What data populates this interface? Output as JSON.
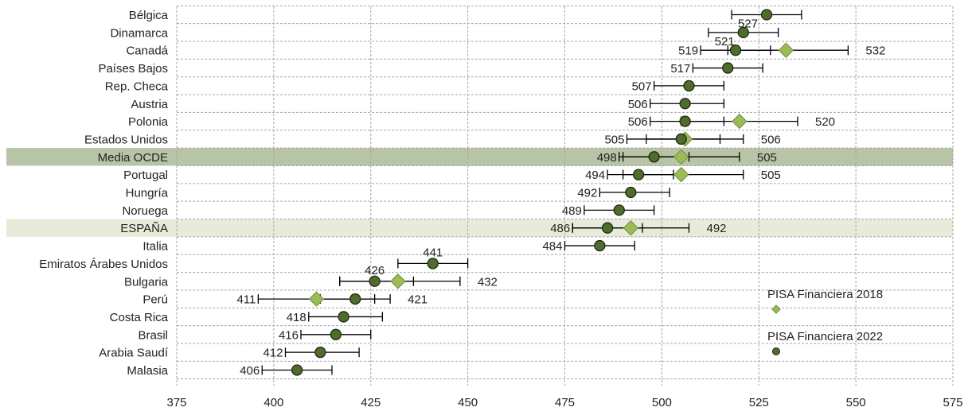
{
  "chart_data": {
    "type": "scatter",
    "title": "",
    "xlabel": "",
    "ylabel": "",
    "xlim": [
      375,
      575
    ],
    "xticks": [
      375,
      400,
      425,
      450,
      475,
      500,
      525,
      550,
      575
    ],
    "grid": true,
    "legend_position": "right",
    "colors": {
      "pisa_2022": "#4f6b2d",
      "pisa_2018": "#9bbb59",
      "highlight_oecd": "#b7c4a5",
      "highlight_spain": "#e6ecd9",
      "grid": "#a6a6a6"
    },
    "series": [
      {
        "name": "PISA Financiera 2018",
        "marker": "diamond",
        "key": "pisa_2018"
      },
      {
        "name": "PISA Financiera 2022",
        "marker": "circle",
        "key": "pisa_2022"
      }
    ],
    "rows": [
      {
        "label": "Bélgica",
        "v2022": 527,
        "lo2022": 518,
        "hi2022": 536,
        "v2018": null,
        "lo2018": null,
        "hi2018": null,
        "label2022": "527",
        "label2018": "",
        "highlight": ""
      },
      {
        "label": "Dinamarca",
        "v2022": 521,
        "lo2022": 512,
        "hi2022": 530,
        "v2018": null,
        "lo2018": null,
        "hi2018": null,
        "label2022": "521",
        "label2018": "",
        "highlight": ""
      },
      {
        "label": "Canadá",
        "v2022": 519,
        "lo2022": 510,
        "hi2022": 528,
        "v2018": 532,
        "lo2018": 517,
        "hi2018": 548,
        "label2022": "519",
        "label2018": "532",
        "highlight": ""
      },
      {
        "label": "Países Bajos",
        "v2022": 517,
        "lo2022": 508,
        "hi2022": 526,
        "v2018": null,
        "lo2018": null,
        "hi2018": null,
        "label2022": "517",
        "label2018": "",
        "highlight": ""
      },
      {
        "label": "Rep. Checa",
        "v2022": 507,
        "lo2022": 498,
        "hi2022": 516,
        "v2018": null,
        "lo2018": null,
        "hi2018": null,
        "label2022": "507",
        "label2018": "",
        "highlight": ""
      },
      {
        "label": "Austria",
        "v2022": 506,
        "lo2022": 497,
        "hi2022": 516,
        "v2018": null,
        "lo2018": null,
        "hi2018": null,
        "label2022": "506",
        "label2018": "",
        "highlight": ""
      },
      {
        "label": "Polonia",
        "v2022": 506,
        "lo2022": 497,
        "hi2022": 516,
        "v2018": 520,
        "lo2018": 505,
        "hi2018": 535,
        "label2022": "506",
        "label2018": "520",
        "highlight": ""
      },
      {
        "label": "Estados Unidos",
        "v2022": 505,
        "lo2022": 496,
        "hi2022": 515,
        "v2018": 506,
        "lo2018": 491,
        "hi2018": 521,
        "label2022": "505",
        "label2018": "506",
        "highlight": ""
      },
      {
        "label": "Media OCDE",
        "v2022": 498,
        "lo2022": 489,
        "hi2022": 507,
        "v2018": 505,
        "lo2018": 490,
        "hi2018": 520,
        "label2022": "498",
        "label2018": "505",
        "highlight": "oecd"
      },
      {
        "label": "Portugal",
        "v2022": 494,
        "lo2022": 486,
        "hi2022": 503,
        "v2018": 505,
        "lo2018": 490,
        "hi2018": 521,
        "label2022": "494",
        "label2018": "505",
        "highlight": ""
      },
      {
        "label": "Hungría",
        "v2022": 492,
        "lo2022": 484,
        "hi2022": 502,
        "v2018": null,
        "lo2018": null,
        "hi2018": null,
        "label2022": "492",
        "label2018": "",
        "highlight": ""
      },
      {
        "label": "Noruega",
        "v2022": 489,
        "lo2022": 480,
        "hi2022": 498,
        "v2018": null,
        "lo2018": null,
        "hi2018": null,
        "label2022": "489",
        "label2018": "",
        "highlight": ""
      },
      {
        "label": "ESPAÑA",
        "v2022": 486,
        "lo2022": 477,
        "hi2022": 495,
        "v2018": 492,
        "lo2018": 477,
        "hi2018": 507,
        "label2022": "486",
        "label2018": "492",
        "highlight": "spain"
      },
      {
        "label": "Italia",
        "v2022": 484,
        "lo2022": 475,
        "hi2022": 493,
        "v2018": null,
        "lo2018": null,
        "hi2018": null,
        "label2022": "484",
        "label2018": "",
        "highlight": ""
      },
      {
        "label": "Emiratos Árabes Unidos",
        "v2022": 441,
        "lo2022": 432,
        "hi2022": 450,
        "v2018": null,
        "lo2018": null,
        "hi2018": null,
        "label2022": "441",
        "label2018": "",
        "highlight": ""
      },
      {
        "label": "Bulgaria",
        "v2022": 426,
        "lo2022": 417,
        "hi2022": 436,
        "v2018": 432,
        "lo2018": 417,
        "hi2018": 448,
        "label2022": "426",
        "label2018": "432",
        "highlight": ""
      },
      {
        "label": "Perú",
        "v2022": 421,
        "lo2022": 412,
        "hi2022": 430,
        "v2018": 411,
        "lo2018": 396,
        "hi2018": 426,
        "label2022": "421",
        "label2018": "411",
        "highlight": ""
      },
      {
        "label": "Costa Rica",
        "v2022": 418,
        "lo2022": 409,
        "hi2022": 428,
        "v2018": null,
        "lo2018": null,
        "hi2018": null,
        "label2022": "418",
        "label2018": "",
        "highlight": ""
      },
      {
        "label": "Brasil",
        "v2022": 416,
        "lo2022": 407,
        "hi2022": 425,
        "v2018": null,
        "lo2018": null,
        "hi2018": null,
        "label2022": "416",
        "label2018": "",
        "highlight": ""
      },
      {
        "label": "Arabia Saudí",
        "v2022": 412,
        "lo2022": 403,
        "hi2022": 422,
        "v2018": null,
        "lo2018": null,
        "hi2018": null,
        "label2022": "412",
        "label2018": "",
        "highlight": ""
      },
      {
        "label": "Malasia",
        "v2022": 406,
        "lo2022": 397,
        "hi2022": 415,
        "v2018": null,
        "lo2018": null,
        "hi2018": null,
        "label2022": "406",
        "label2018": "",
        "highlight": ""
      }
    ]
  }
}
